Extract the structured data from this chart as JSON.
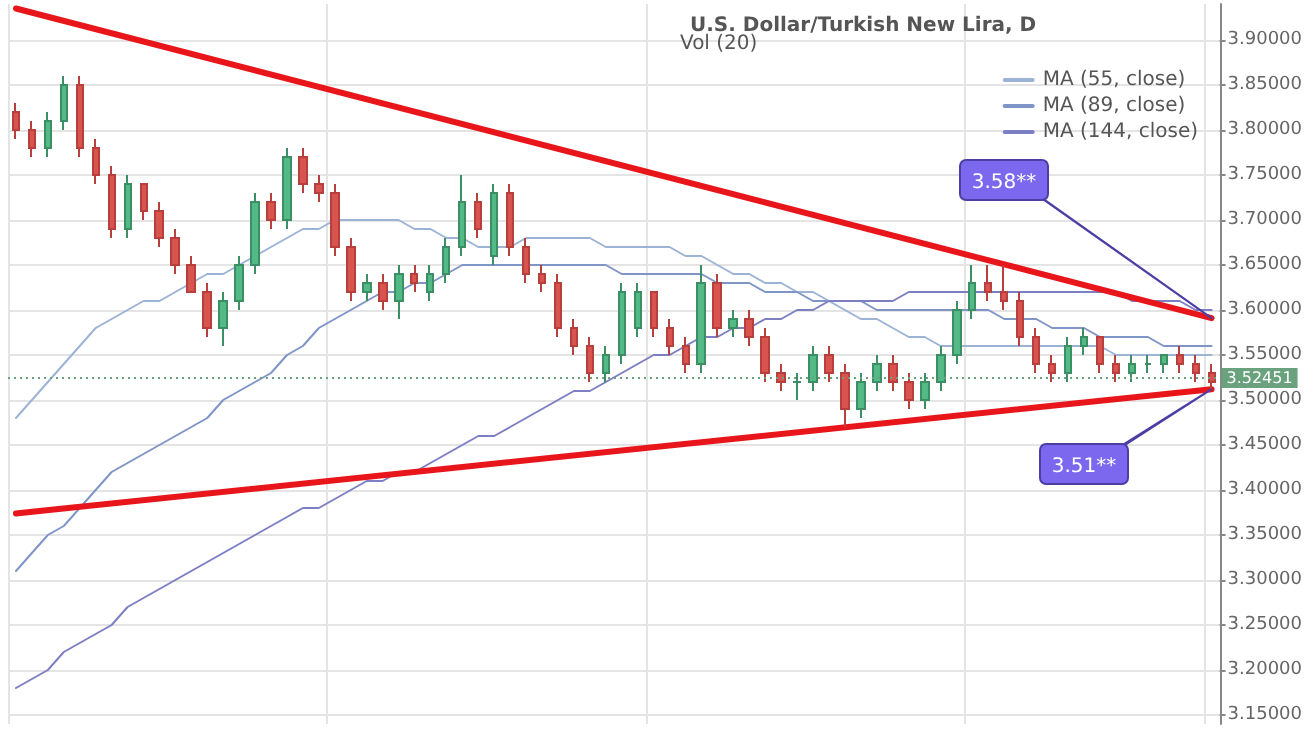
{
  "chart_data": {
    "type": "candlestick",
    "title": "U.S. Dollar/Turkish New Lira, D",
    "categories": [
      null,
      null,
      null,
      null,
      null,
      null,
      null,
      null,
      null,
      null,
      null,
      null,
      null,
      null,
      null,
      null,
      null,
      null,
      null,
      null,
      null,
      null,
      null,
      null,
      null,
      null,
      null,
      null,
      null,
      null,
      null,
      null,
      null,
      null,
      null,
      null,
      null,
      null,
      null,
      null,
      null,
      null,
      null,
      null,
      null,
      null,
      null,
      null,
      null,
      null,
      null,
      null,
      null,
      null,
      null,
      null,
      null,
      null,
      null,
      null,
      null,
      null,
      null,
      null,
      null,
      null,
      null,
      null,
      null,
      null,
      null,
      null,
      null,
      null,
      null,
      null
    ],
    "ohlc": [
      [
        3.82,
        3.83,
        3.79,
        3.8
      ],
      [
        3.8,
        3.81,
        3.77,
        3.78
      ],
      [
        3.78,
        3.82,
        3.77,
        3.81
      ],
      [
        3.81,
        3.86,
        3.8,
        3.85
      ],
      [
        3.85,
        3.86,
        3.77,
        3.78
      ],
      [
        3.78,
        3.79,
        3.74,
        3.75
      ],
      [
        3.75,
        3.76,
        3.68,
        3.69
      ],
      [
        3.69,
        3.75,
        3.68,
        3.74
      ],
      [
        3.74,
        3.74,
        3.7,
        3.71
      ],
      [
        3.71,
        3.72,
        3.67,
        3.68
      ],
      [
        3.68,
        3.69,
        3.64,
        3.65
      ],
      [
        3.65,
        3.66,
        3.62,
        3.62
      ],
      [
        3.62,
        3.63,
        3.57,
        3.58
      ],
      [
        3.58,
        3.62,
        3.56,
        3.61
      ],
      [
        3.61,
        3.66,
        3.6,
        3.65
      ],
      [
        3.65,
        3.73,
        3.64,
        3.72
      ],
      [
        3.72,
        3.73,
        3.69,
        3.7
      ],
      [
        3.7,
        3.78,
        3.69,
        3.77
      ],
      [
        3.77,
        3.78,
        3.73,
        3.74
      ],
      [
        3.74,
        3.75,
        3.72,
        3.73
      ],
      [
        3.73,
        3.74,
        3.66,
        3.67
      ],
      [
        3.67,
        3.68,
        3.61,
        3.62
      ],
      [
        3.62,
        3.64,
        3.61,
        3.63
      ],
      [
        3.63,
        3.64,
        3.6,
        3.61
      ],
      [
        3.61,
        3.65,
        3.59,
        3.64
      ],
      [
        3.64,
        3.65,
        3.62,
        3.63
      ],
      [
        3.62,
        3.65,
        3.61,
        3.64
      ],
      [
        3.64,
        3.68,
        3.63,
        3.67
      ],
      [
        3.67,
        3.75,
        3.66,
        3.72
      ],
      [
        3.72,
        3.73,
        3.68,
        3.69
      ],
      [
        3.66,
        3.74,
        3.65,
        3.73
      ],
      [
        3.73,
        3.74,
        3.66,
        3.67
      ],
      [
        3.67,
        3.68,
        3.63,
        3.64
      ],
      [
        3.64,
        3.65,
        3.62,
        3.63
      ],
      [
        3.63,
        3.64,
        3.57,
        3.58
      ],
      [
        3.58,
        3.59,
        3.55,
        3.56
      ],
      [
        3.56,
        3.57,
        3.52,
        3.53
      ],
      [
        3.53,
        3.56,
        3.52,
        3.55
      ],
      [
        3.55,
        3.63,
        3.54,
        3.62
      ],
      [
        3.58,
        3.63,
        3.57,
        3.62
      ],
      [
        3.62,
        3.62,
        3.57,
        3.58
      ],
      [
        3.58,
        3.59,
        3.55,
        3.56
      ],
      [
        3.56,
        3.57,
        3.53,
        3.54
      ],
      [
        3.54,
        3.65,
        3.53,
        3.63
      ],
      [
        3.63,
        3.64,
        3.57,
        3.58
      ],
      [
        3.58,
        3.6,
        3.57,
        3.59
      ],
      [
        3.59,
        3.6,
        3.56,
        3.57
      ],
      [
        3.57,
        3.58,
        3.52,
        3.53
      ],
      [
        3.53,
        3.54,
        3.51,
        3.52
      ],
      [
        3.52,
        3.53,
        3.5,
        3.52
      ],
      [
        3.52,
        3.56,
        3.51,
        3.55
      ],
      [
        3.55,
        3.56,
        3.52,
        3.53
      ],
      [
        3.53,
        3.54,
        3.47,
        3.49
      ],
      [
        3.49,
        3.53,
        3.48,
        3.52
      ],
      [
        3.52,
        3.55,
        3.51,
        3.54
      ],
      [
        3.54,
        3.55,
        3.51,
        3.52
      ],
      [
        3.52,
        3.53,
        3.49,
        3.5
      ],
      [
        3.5,
        3.53,
        3.49,
        3.52
      ],
      [
        3.52,
        3.56,
        3.51,
        3.55
      ],
      [
        3.55,
        3.61,
        3.54,
        3.6
      ],
      [
        3.6,
        3.65,
        3.59,
        3.63
      ],
      [
        3.63,
        3.65,
        3.61,
        3.62
      ],
      [
        3.62,
        3.65,
        3.6,
        3.61
      ],
      [
        3.61,
        3.62,
        3.56,
        3.57
      ],
      [
        3.57,
        3.58,
        3.53,
        3.54
      ],
      [
        3.54,
        3.55,
        3.52,
        3.53
      ],
      [
        3.53,
        3.57,
        3.52,
        3.56
      ],
      [
        3.56,
        3.58,
        3.55,
        3.57
      ],
      [
        3.57,
        3.57,
        3.53,
        3.54
      ],
      [
        3.54,
        3.55,
        3.52,
        3.53
      ],
      [
        3.53,
        3.55,
        3.52,
        3.54
      ],
      [
        3.54,
        3.55,
        3.53,
        3.54
      ],
      [
        3.54,
        3.55,
        3.53,
        3.55
      ],
      [
        3.55,
        3.56,
        3.53,
        3.54
      ],
      [
        3.54,
        3.55,
        3.52,
        3.53
      ],
      [
        3.53,
        3.54,
        3.51,
        3.52
      ]
    ],
    "series": [
      {
        "name": "MA (55, close)",
        "type": "line",
        "color": "#9db3d6",
        "values": [
          3.48,
          3.5,
          3.52,
          3.54,
          3.56,
          3.58,
          3.59,
          3.6,
          3.61,
          3.61,
          3.62,
          3.63,
          3.64,
          3.64,
          3.65,
          3.66,
          3.67,
          3.68,
          3.69,
          3.69,
          3.7,
          3.7,
          3.7,
          3.7,
          3.7,
          3.69,
          3.69,
          3.68,
          3.68,
          3.67,
          3.67,
          3.67,
          3.68,
          3.68,
          3.68,
          3.68,
          3.68,
          3.67,
          3.67,
          3.67,
          3.67,
          3.67,
          3.66,
          3.66,
          3.65,
          3.64,
          3.64,
          3.63,
          3.63,
          3.62,
          3.62,
          3.61,
          3.6,
          3.59,
          3.59,
          3.58,
          3.57,
          3.57,
          3.56,
          3.56,
          3.56,
          3.56,
          3.56,
          3.56,
          3.56,
          3.56,
          3.56,
          3.56,
          3.56,
          3.55,
          3.55,
          3.55,
          3.55,
          3.55,
          3.55,
          3.55
        ]
      },
      {
        "name": "MA (89, close)",
        "type": "line",
        "color": "#7f95c8",
        "values": [
          3.31,
          3.33,
          3.35,
          3.36,
          3.38,
          3.4,
          3.42,
          3.43,
          3.44,
          3.45,
          3.46,
          3.47,
          3.48,
          3.5,
          3.51,
          3.52,
          3.53,
          3.55,
          3.56,
          3.58,
          3.59,
          3.6,
          3.61,
          3.62,
          3.62,
          3.63,
          3.63,
          3.64,
          3.65,
          3.65,
          3.65,
          3.65,
          3.65,
          3.65,
          3.65,
          3.65,
          3.65,
          3.65,
          3.64,
          3.64,
          3.64,
          3.64,
          3.64,
          3.64,
          3.63,
          3.63,
          3.63,
          3.62,
          3.62,
          3.62,
          3.61,
          3.61,
          3.61,
          3.61,
          3.6,
          3.6,
          3.6,
          3.6,
          3.6,
          3.6,
          3.6,
          3.6,
          3.59,
          3.59,
          3.59,
          3.58,
          3.58,
          3.58,
          3.57,
          3.57,
          3.57,
          3.57,
          3.56,
          3.56,
          3.56,
          3.56
        ]
      },
      {
        "name": "MA (144, close)",
        "type": "line",
        "color": "#7d7fc4",
        "values": [
          3.18,
          3.19,
          3.2,
          3.22,
          3.23,
          3.24,
          3.25,
          3.27,
          3.28,
          3.29,
          3.3,
          3.31,
          3.32,
          3.33,
          3.34,
          3.35,
          3.36,
          3.37,
          3.38,
          3.38,
          3.39,
          3.4,
          3.41,
          3.41,
          3.42,
          3.42,
          3.43,
          3.44,
          3.45,
          3.46,
          3.46,
          3.47,
          3.48,
          3.49,
          3.5,
          3.51,
          3.51,
          3.52,
          3.53,
          3.54,
          3.55,
          3.55,
          3.56,
          3.57,
          3.57,
          3.58,
          3.58,
          3.59,
          3.59,
          3.6,
          3.6,
          3.61,
          3.61,
          3.61,
          3.61,
          3.61,
          3.62,
          3.62,
          3.62,
          3.62,
          3.62,
          3.62,
          3.62,
          3.62,
          3.62,
          3.62,
          3.62,
          3.62,
          3.62,
          3.62,
          3.61,
          3.61,
          3.61,
          3.61,
          3.6,
          3.6
        ]
      },
      {
        "type": "line",
        "color": "#e8161b",
        "values": [
          3.935,
          null,
          null,
          null,
          null,
          null,
          null,
          null,
          null,
          null,
          null,
          null,
          null,
          null,
          null,
          null,
          null,
          null,
          null,
          null,
          null,
          null,
          null,
          null,
          null,
          null,
          null,
          null,
          null,
          null,
          null,
          null,
          null,
          null,
          null,
          null,
          null,
          null,
          null,
          null,
          null,
          null,
          null,
          null,
          null,
          null,
          null,
          null,
          null,
          null,
          null,
          null,
          null,
          null,
          null,
          null,
          null,
          null,
          null,
          null,
          null,
          null,
          null,
          null,
          null,
          null,
          null,
          null,
          null,
          null,
          null,
          null,
          null,
          null,
          null,
          3.591
        ]
      },
      {
        "type": "line",
        "color": "#e8161b",
        "values": [
          3.374,
          null,
          null,
          null,
          null,
          null,
          null,
          null,
          null,
          null,
          null,
          null,
          null,
          null,
          null,
          null,
          null,
          null,
          null,
          null,
          null,
          null,
          null,
          null,
          null,
          null,
          null,
          null,
          null,
          null,
          null,
          null,
          null,
          null,
          null,
          null,
          null,
          null,
          null,
          null,
          null,
          null,
          null,
          null,
          null,
          null,
          null,
          null,
          null,
          null,
          null,
          null,
          null,
          null,
          null,
          null,
          null,
          null,
          null,
          null,
          null,
          null,
          null,
          null,
          null,
          null,
          null,
          null,
          null,
          null,
          null,
          null,
          null,
          null,
          null,
          3.512
        ]
      }
    ],
    "ylim": [
      3.14,
      3.94
    ],
    "yticks": [
      {
        "value": 3.15,
        "label": "3.15000"
      },
      {
        "value": 3.2,
        "label": "3.20000"
      },
      {
        "value": 3.25,
        "label": "3.25000"
      },
      {
        "value": 3.3,
        "label": "3.30000"
      },
      {
        "value": 3.35,
        "label": "3.35000"
      },
      {
        "value": 3.4,
        "label": "3.40000"
      },
      {
        "value": 3.45,
        "label": "3.45000"
      },
      {
        "value": 3.5,
        "label": "3.50000"
      },
      {
        "value": 3.55,
        "label": "3.55000"
      },
      {
        "value": 3.6,
        "label": "3.60000"
      },
      {
        "value": 3.65,
        "label": "3.65000"
      },
      {
        "value": 3.7,
        "label": "3.70000"
      },
      {
        "value": 3.75,
        "label": "3.75000"
      },
      {
        "value": 3.8,
        "label": "3.80000"
      },
      {
        "value": 3.85,
        "label": "3.85000"
      },
      {
        "value": 3.9,
        "label": "3.90000"
      }
    ],
    "ref_lines": [
      {
        "axis": "y",
        "value": 3.52451,
        "label": "3.52451",
        "color": "#6aa27e",
        "line_style": "dotted"
      }
    ],
    "annotations": [
      "Vol (20)",
      "3.58**",
      "3.51**"
    ],
    "grid": true,
    "legend": "top right",
    "tick_labels": "y",
    "line_style": "solid"
  }
}
